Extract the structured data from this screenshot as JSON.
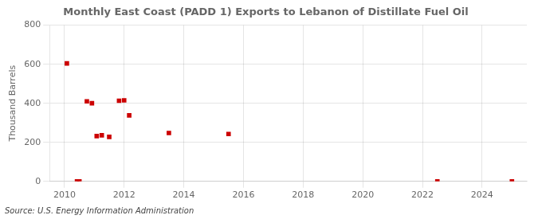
{
  "chart_data": {
    "type": "scatter",
    "title": "Monthly East Coast (PADD 1) Exports to Lebanon of Distillate Fuel Oil",
    "ylabel": "Thousand Barrels",
    "source": "Source: U.S. Energy Information Administration",
    "x": [
      2010.08,
      2010.42,
      2010.5,
      2010.75,
      2010.92,
      2011.08,
      2011.25,
      2011.5,
      2011.83,
      2012.0,
      2012.17,
      2013.5,
      2015.5,
      2022.5,
      2025.0
    ],
    "values": [
      604,
      0,
      0,
      410,
      400,
      232,
      236,
      228,
      413,
      415,
      338,
      248,
      243,
      0,
      0
    ],
    "color": "#cc0000",
    "marker": "square",
    "xlim": [
      2009.5,
      2025.5
    ],
    "ylim": [
      0,
      800
    ],
    "xticks": [
      2010,
      2012,
      2014,
      2016,
      2018,
      2020,
      2022,
      2024
    ],
    "yticks": [
      0,
      200,
      400,
      600,
      800
    ],
    "grid": true,
    "legend": false
  }
}
